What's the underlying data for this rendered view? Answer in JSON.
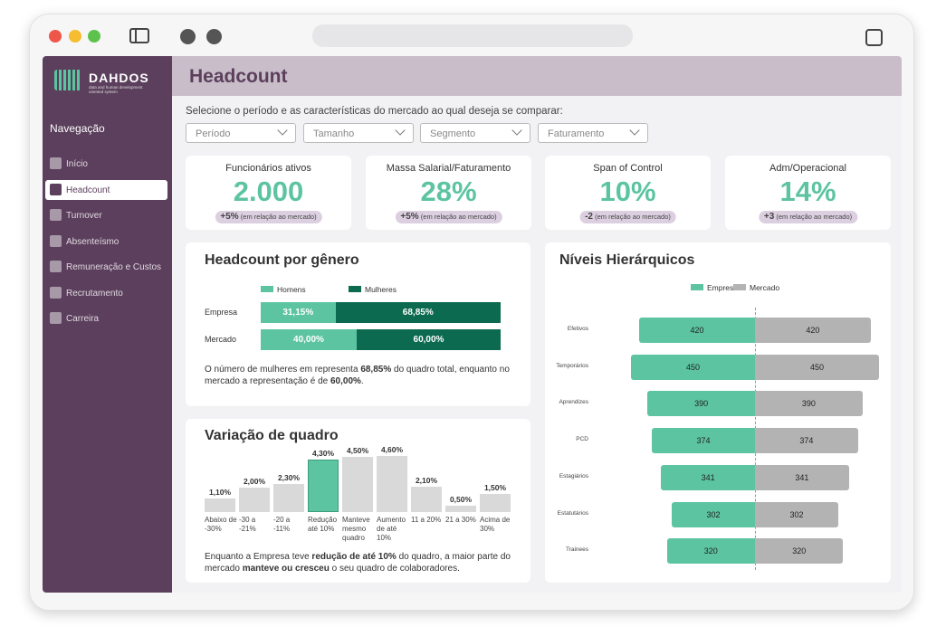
{
  "sidebar": {
    "logo": "DAHDOS",
    "logo_tagline": "data and human development oriented system",
    "nav_title": "Navegação",
    "items": [
      "Início",
      "Headcount",
      "Turnover",
      "Absenteísmo",
      "Remuneração e Custos",
      "Recrutamento",
      "Carreira"
    ],
    "active": 1
  },
  "header": {
    "title": "Headcount"
  },
  "filters": {
    "prompt": "Selecione o período e as características do mercado ao qual deseja se comparar:",
    "dropdowns": [
      "Período",
      "Tamanho",
      "Segmento",
      "Faturamento"
    ]
  },
  "kpis": [
    {
      "label": "Funcionários ativos",
      "value": "2.000",
      "delta": "+5%",
      "delta_note": "(em relação ao mercado)"
    },
    {
      "label": "Massa Salarial/Faturamento",
      "value": "28%",
      "delta": "+5%",
      "delta_note": "(em relação ao mercado)"
    },
    {
      "label": "Span of Control",
      "value": "10%",
      "delta": "-2",
      "delta_note": "(em relação ao mercado)"
    },
    {
      "label": "Adm/Operacional",
      "value": "14%",
      "delta": "+3",
      "delta_note": "(em relação ao mercado)"
    }
  ],
  "chart_data": [
    {
      "type": "stacked_bar",
      "title": "Headcount por gênero",
      "categories": [
        "Empresa",
        "Mercado"
      ],
      "series": [
        {
          "name": "Homens",
          "color": "#5cc4a0",
          "values": [
            31.15,
            40.0
          ],
          "value_labels": [
            "31,15%",
            "40,00%"
          ]
        },
        {
          "name": "Mulheres",
          "color": "#0b6a4f",
          "values": [
            68.85,
            60.0
          ],
          "value_labels": [
            "68,85%",
            "60,00%"
          ]
        }
      ],
      "note": [
        "O número de mulheres em representa ",
        "68,85%",
        " do quadro total, enquanto no mercado a representação é de ",
        "60,00%",
        "."
      ]
    },
    {
      "type": "bar",
      "title": "Variação de quadro",
      "categories": [
        "Abaixo de -30%",
        "-30 a -21%",
        "-20 a -11%",
        "Redução até 10%",
        "Manteve mesmo quadro",
        "Aumento de até 10%",
        "11 a 20%",
        "21 a 30%",
        "Acima de 30%"
      ],
      "values": [
        1.1,
        2.0,
        2.3,
        4.3,
        4.5,
        4.6,
        2.1,
        0.5,
        1.5
      ],
      "value_labels": [
        "1,10%",
        "2,00%",
        "2,30%",
        "4,30%",
        "4,50%",
        "4,60%",
        "2,10%",
        "0,50%",
        "1,50%"
      ],
      "color": "#d9d9d9",
      "highlight": 3,
      "highlight_color": "#5cc4a0",
      "note": [
        "Enquanto a Empresa teve ",
        "redução de até 10%",
        " do quadro, a maior parte do mercado ",
        "manteve ou cresceu",
        " o seu quadro de colaboradores."
      ]
    },
    {
      "type": "diverging_bar",
      "title": "Níveis Hierárquicos",
      "categories": [
        "Efetivos",
        "Temporários",
        "Aprendizes",
        "PCD",
        "Estagiários",
        "Estatutários",
        "Trainees"
      ],
      "series": [
        {
          "name": "Empresa",
          "color": "#5cc4a0",
          "values": [
            420,
            450,
            390,
            374,
            341,
            302,
            320
          ]
        },
        {
          "name": "Mercado",
          "color": "#b3b3b3",
          "values": [
            420,
            450,
            390,
            374,
            341,
            302,
            320
          ]
        }
      ]
    }
  ]
}
